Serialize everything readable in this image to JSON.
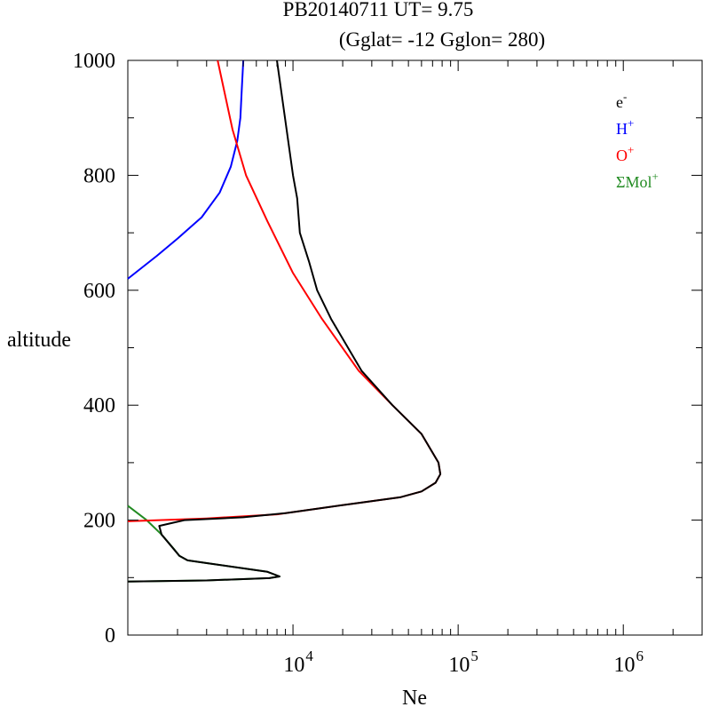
{
  "chart_data": {
    "type": "line",
    "title": "PB20140711    UT=  9.75",
    "subtitle": "(Gglat= -12   Gglon=  280)",
    "xlabel": "Ne",
    "ylabel": "altitude",
    "xscale": "log",
    "xlim": [
      1000,
      3000000
    ],
    "ylim": [
      0,
      1000
    ],
    "grid": false,
    "legend_position": "top-right",
    "y_ticks": [
      {
        "value": 0,
        "label": "0"
      },
      {
        "value": 200,
        "label": "200"
      },
      {
        "value": 400,
        "label": "400"
      },
      {
        "value": 600,
        "label": "600"
      },
      {
        "value": 800,
        "label": "800"
      },
      {
        "value": 1000,
        "label": "1000"
      }
    ],
    "x_ticks": [
      {
        "value": 10000,
        "base": "10",
        "exp": "4"
      },
      {
        "value": 100000,
        "base": "10",
        "exp": "5"
      },
      {
        "value": 1000000,
        "base": "10",
        "exp": "6"
      }
    ],
    "series": [
      {
        "key": "mol",
        "legend": {
          "base": "ΣMol",
          "sup": "+"
        },
        "color": "#228b22",
        "points": [
          [
            1000,
            225
          ],
          [
            1300,
            200
          ],
          [
            1600,
            175
          ],
          [
            1900,
            150
          ],
          [
            2050,
            138
          ],
          [
            2300,
            130
          ],
          [
            7000,
            110
          ],
          [
            8300,
            102
          ],
          [
            7200,
            99
          ],
          [
            3000,
            95
          ],
          [
            1000,
            93
          ]
        ]
      },
      {
        "key": "h",
        "legend": {
          "base": "H",
          "sup": "+"
        },
        "color": "#0000ff",
        "points": [
          [
            1000,
            620
          ],
          [
            1500,
            660
          ],
          [
            2000,
            690
          ],
          [
            2800,
            727
          ],
          [
            3600,
            770
          ],
          [
            4200,
            815
          ],
          [
            4600,
            860
          ],
          [
            4800,
            900
          ],
          [
            4900,
            950
          ],
          [
            5000,
            1000
          ]
        ]
      },
      {
        "key": "o",
        "legend": {
          "base": "O",
          "sup": "+"
        },
        "color": "#ff0000",
        "points": [
          [
            1000,
            198
          ],
          [
            3000,
            203
          ],
          [
            8000,
            210
          ],
          [
            14000,
            220
          ],
          [
            25000,
            230
          ],
          [
            45000,
            240
          ],
          [
            60000,
            250
          ],
          [
            73000,
            265
          ],
          [
            78000,
            280
          ],
          [
            76000,
            300
          ],
          [
            60000,
            350
          ],
          [
            40000,
            400
          ],
          [
            25000,
            460
          ],
          [
            15000,
            550
          ],
          [
            10000,
            630
          ],
          [
            7000,
            720
          ],
          [
            5200,
            800
          ],
          [
            4300,
            880
          ],
          [
            3500,
            1000
          ]
        ]
      },
      {
        "key": "e",
        "legend": {
          "base": "e",
          "sup": "-"
        },
        "color": "#000000",
        "points": [
          [
            1000,
            93
          ],
          [
            3000,
            95
          ],
          [
            7200,
            99
          ],
          [
            8300,
            102
          ],
          [
            7000,
            110
          ],
          [
            2300,
            130
          ],
          [
            2050,
            138
          ],
          [
            1600,
            175
          ],
          [
            1550,
            190
          ],
          [
            2200,
            200
          ],
          [
            5000,
            205
          ],
          [
            9000,
            212
          ],
          [
            14000,
            220
          ],
          [
            25000,
            230
          ],
          [
            45000,
            240
          ],
          [
            60000,
            250
          ],
          [
            73000,
            265
          ],
          [
            78000,
            280
          ],
          [
            76000,
            300
          ],
          [
            60000,
            350
          ],
          [
            40000,
            400
          ],
          [
            26000,
            460
          ],
          [
            17000,
            550
          ],
          [
            14000,
            600
          ],
          [
            12500,
            650
          ],
          [
            11000,
            700
          ],
          [
            10600,
            760
          ],
          [
            10000,
            800
          ],
          [
            8000,
            1000
          ]
        ]
      }
    ]
  }
}
